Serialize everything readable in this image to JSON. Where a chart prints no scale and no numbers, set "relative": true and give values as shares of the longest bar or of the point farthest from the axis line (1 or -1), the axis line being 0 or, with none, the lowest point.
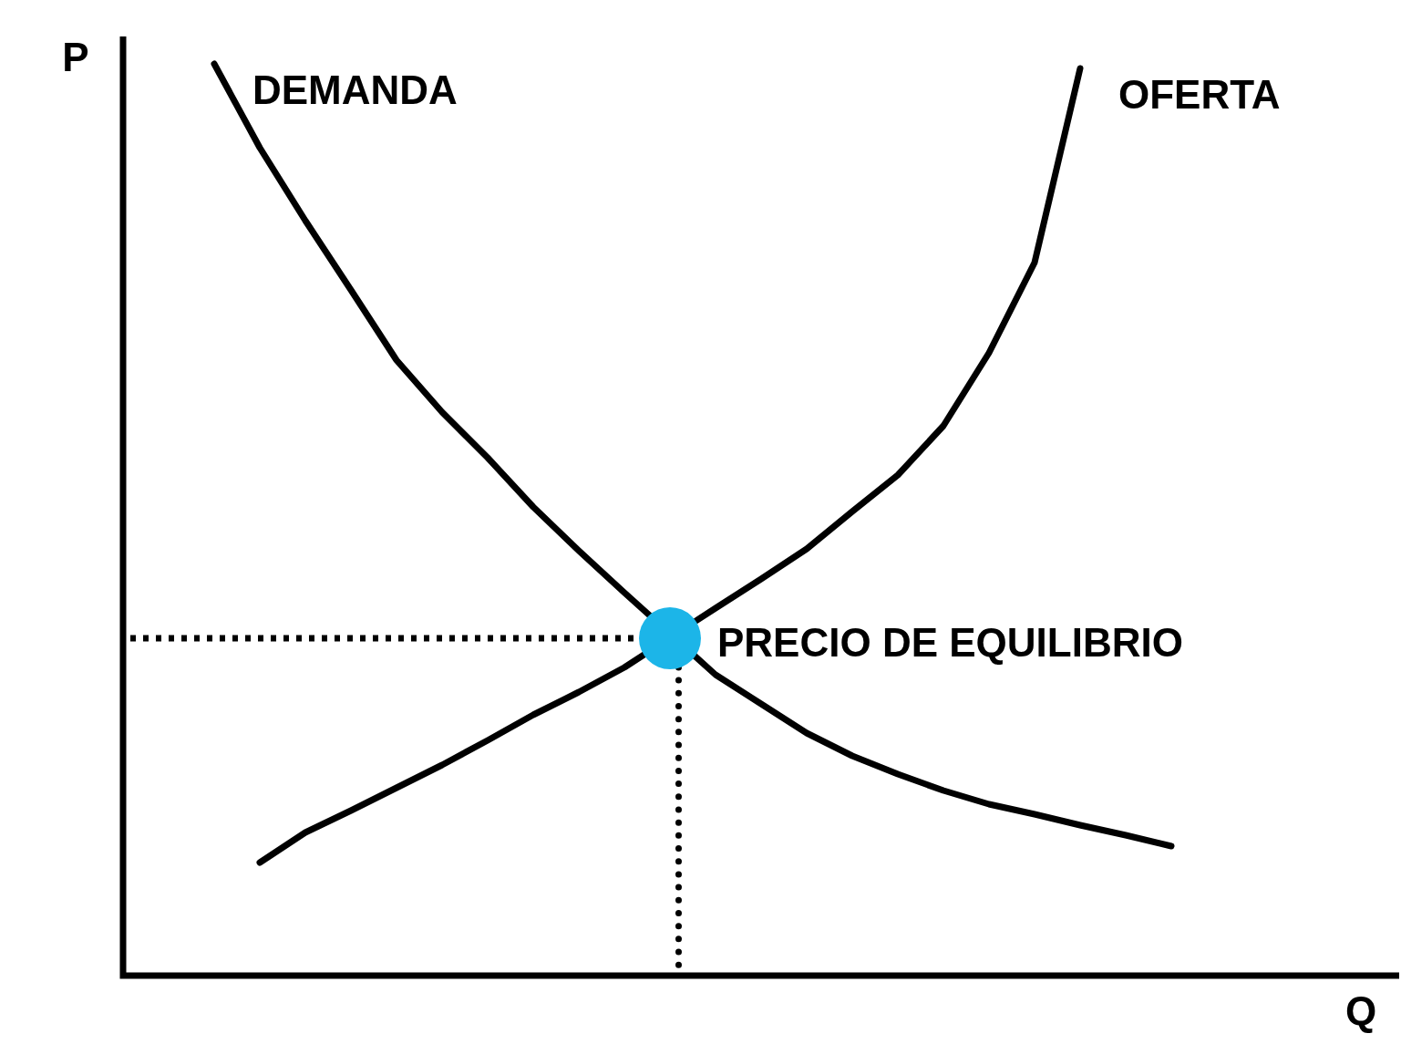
{
  "chart_data": {
    "type": "line",
    "relative": true,
    "xlabel": "Q",
    "ylabel": "P",
    "grid": false,
    "legend": false,
    "marker": "none",
    "categories": [
      null,
      null,
      null,
      null,
      null,
      null,
      null,
      null,
      null,
      null,
      null,
      null,
      null,
      null,
      null,
      null,
      null,
      null,
      null,
      null,
      null,
      null,
      null,
      null,
      null,
      null,
      null,
      null,
      null
    ],
    "series": [
      {
        "name": "DEMANDA",
        "color": "#000000",
        "values": [
          null,
          null,
          1.0,
          0.908,
          0.828,
          0.752,
          0.675,
          0.618,
          0.568,
          0.514,
          0.466,
          0.42,
          null,
          0.33,
          0.298,
          0.266,
          0.241,
          0.221,
          0.203,
          0.188,
          0.177,
          0.165,
          0.154,
          0.142,
          null,
          null,
          null,
          null,
          null
        ]
      },
      {
        "name": "OFERTA",
        "color": "#000000",
        "values": [
          null,
          null,
          null,
          0.124,
          0.157,
          0.181,
          0.206,
          0.231,
          0.258,
          0.286,
          0.311,
          0.338,
          null,
          0.403,
          0.435,
          0.468,
          0.509,
          0.549,
          0.603,
          0.683,
          0.782,
          0.995,
          null,
          null,
          null,
          null,
          null,
          null,
          null
        ]
      }
    ],
    "ref_lines": [
      {
        "axis": "y",
        "value": 0.37,
        "color": "#000000",
        "line_style": "dotted"
      }
    ],
    "annotations": [
      "PRECIO DE EQUILIBRIO"
    ]
  }
}
